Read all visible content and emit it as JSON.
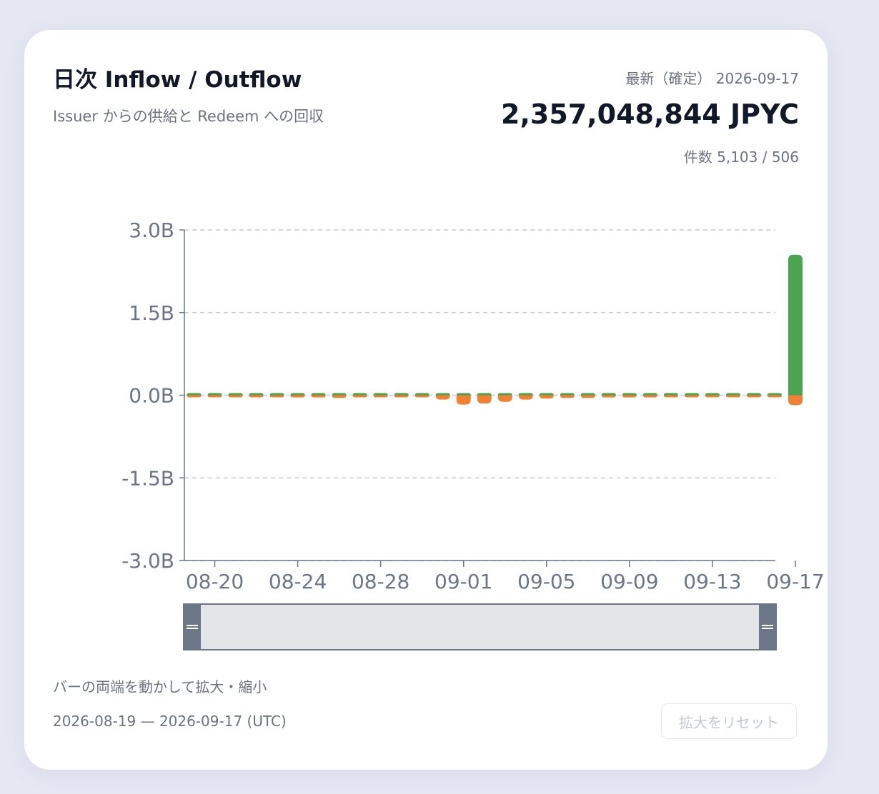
{
  "header": {
    "title": "日次 Inflow / Outflow",
    "subtitle": "Issuer からの供給と Redeem への回収",
    "latest_label": "最新（確定） 2026-09-17",
    "latest_value": "2,357,048,844 JPYC",
    "counts": "件数 5,103 / 506"
  },
  "footer": {
    "hint": "バーの両端を動かして拡大・縮小",
    "range": "2026-08-19 — 2026-09-17 (UTC)",
    "reset_label": "拡大をリセット"
  },
  "colors": {
    "inflow": "#4ca352",
    "outflow": "#f08033",
    "axis": "#6b7689",
    "grid": "#c9cdd5",
    "slider_fill": "#e3e5e9",
    "slider_handle": "#6b7689"
  },
  "chart_data": {
    "type": "bar",
    "categories": [
      "08-19",
      "08-20",
      "08-21",
      "08-22",
      "08-23",
      "08-24",
      "08-25",
      "08-26",
      "08-27",
      "08-28",
      "08-29",
      "08-30",
      "08-31",
      "09-01",
      "09-02",
      "09-03",
      "09-04",
      "09-05",
      "09-06",
      "09-07",
      "09-08",
      "09-09",
      "09-10",
      "09-11",
      "09-12",
      "09-13",
      "09-14",
      "09-15",
      "09-16",
      "09-17"
    ],
    "x_tick_labels": [
      "08-20",
      "08-24",
      "08-28",
      "09-01",
      "09-05",
      "09-09",
      "09-13",
      "09-17"
    ],
    "y_tick_labels": [
      "3.0B",
      "1.5B",
      "0.0B",
      "-1.5B",
      "-3.0B"
    ],
    "y_ticks": [
      3,
      1.5,
      0,
      -1.5,
      -3
    ],
    "ylim": [
      -3,
      3
    ],
    "y_unit": "B",
    "grid": true,
    "series": [
      {
        "key": "inflow",
        "values": [
          0.02,
          0.03,
          0.02,
          0.01,
          0.02,
          0.02,
          0.01,
          0.02,
          0.02,
          0.02,
          0.01,
          0.01,
          0.02,
          0.02,
          0.02,
          0.02,
          0.01,
          0.02,
          0.02,
          0.02,
          0.02,
          0.02,
          0.02,
          0.02,
          0.01,
          0.01,
          0.02,
          0.02,
          0.02,
          2.55
        ]
      },
      {
        "key": "outflow",
        "values": [
          -0.03,
          -0.02,
          -0.02,
          -0.01,
          -0.03,
          -0.04,
          -0.04,
          -0.05,
          -0.03,
          -0.03,
          -0.02,
          -0.03,
          -0.08,
          -0.17,
          -0.15,
          -0.12,
          -0.08,
          -0.06,
          -0.05,
          -0.05,
          -0.04,
          -0.04,
          -0.04,
          -0.03,
          -0.02,
          -0.02,
          -0.02,
          -0.02,
          -0.03,
          -0.18
        ]
      }
    ]
  }
}
